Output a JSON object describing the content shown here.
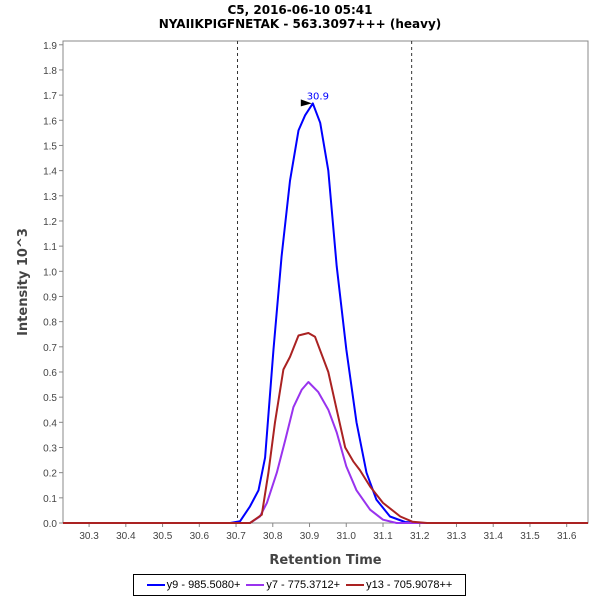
{
  "chart_data": {
    "type": "line",
    "title": "C5, 2016-06-10 05:41",
    "subtitle": "NYAIIKPIGFNETAK - 563.3097+++ (heavy)",
    "xlabel": "Retention Time",
    "ylabel": "Intensity 10^3",
    "xlim": [
      30.229,
      31.658
    ],
    "ylim": [
      0,
      1.915
    ],
    "xticks": [
      "30.3",
      "30.4",
      "30.5",
      "30.6",
      "30.7",
      "30.8",
      "30.9",
      "31.0",
      "31.1",
      "31.2",
      "31.3",
      "31.4",
      "31.5",
      "31.6"
    ],
    "yticks": [
      "0.0",
      "0.1",
      "0.2",
      "0.3",
      "0.4",
      "0.5",
      "0.6",
      "0.7",
      "0.8",
      "0.9",
      "1.0",
      "1.1",
      "1.2",
      "1.3",
      "1.4",
      "1.5",
      "1.6",
      "1.7",
      "1.8",
      "1.9"
    ],
    "grid": false,
    "legend_position": "bottom",
    "boundaries": [
      30.704,
      31.178
    ],
    "annotation": {
      "label": "30.9",
      "x": 30.909,
      "y": 1.667,
      "color": "#0000ff"
    },
    "series": [
      {
        "name": "y9 - 985.5080+",
        "color": "#0000ff",
        "x": [
          30.229,
          30.684,
          30.711,
          30.738,
          30.761,
          30.779,
          30.802,
          30.824,
          30.847,
          30.87,
          30.888,
          30.909,
          30.929,
          30.951,
          30.974,
          31.0,
          31.028,
          31.055,
          31.082,
          31.119,
          31.16,
          31.2,
          31.658
        ],
        "y": [
          0,
          0,
          0.007,
          0.066,
          0.13,
          0.26,
          0.69,
          1.06,
          1.36,
          1.56,
          1.62,
          1.667,
          1.59,
          1.4,
          1.02,
          0.69,
          0.4,
          0.2,
          0.093,
          0.026,
          0.004,
          0,
          0
        ]
      },
      {
        "name": "y7 - 775.3712+",
        "color": "#9933ee",
        "x": [
          30.229,
          30.738,
          30.765,
          30.784,
          30.811,
          30.834,
          30.856,
          30.879,
          30.897,
          30.924,
          30.951,
          30.974,
          31.0,
          31.028,
          31.065,
          31.1,
          31.137,
          31.658
        ],
        "y": [
          0,
          0,
          0.026,
          0.08,
          0.2,
          0.33,
          0.46,
          0.53,
          0.56,
          0.52,
          0.45,
          0.36,
          0.225,
          0.13,
          0.053,
          0.013,
          0,
          0
        ]
      },
      {
        "name": "y13 - 705.9078++",
        "color": "#aa2222",
        "x": [
          30.229,
          30.738,
          30.77,
          30.788,
          30.806,
          30.829,
          30.847,
          30.87,
          30.897,
          30.915,
          30.951,
          30.974,
          30.997,
          31.019,
          31.037,
          31.065,
          31.1,
          31.147,
          31.18,
          31.22,
          31.658
        ],
        "y": [
          0,
          0,
          0.033,
          0.2,
          0.4,
          0.61,
          0.66,
          0.745,
          0.755,
          0.74,
          0.6,
          0.45,
          0.3,
          0.245,
          0.21,
          0.145,
          0.08,
          0.026,
          0.005,
          0,
          0
        ]
      }
    ]
  }
}
